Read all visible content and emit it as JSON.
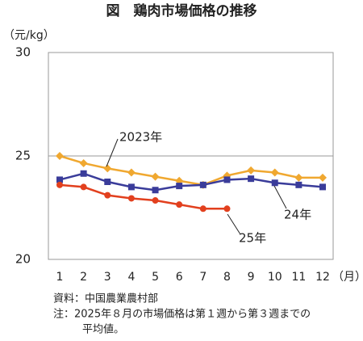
{
  "chart_data": {
    "type": "line",
    "title": "図　鶏肉市場価格の推移",
    "y_label": "（元/kg）",
    "x_label": "（月）",
    "categories": [
      "1",
      "2",
      "3",
      "4",
      "5",
      "6",
      "7",
      "8",
      "9",
      "10",
      "11",
      "12"
    ],
    "series": [
      {
        "name": "2023年",
        "color": "#f0a830",
        "marker": "diamond",
        "values": [
          25.0,
          24.65,
          24.4,
          24.2,
          24.0,
          23.8,
          23.6,
          24.05,
          24.3,
          24.2,
          23.95,
          23.95
        ]
      },
      {
        "name": "24年",
        "color": "#3a3c9a",
        "marker": "square",
        "values": [
          23.85,
          24.15,
          23.75,
          23.5,
          23.35,
          23.55,
          23.6,
          23.85,
          23.9,
          23.7,
          23.6,
          23.5
        ]
      },
      {
        "name": "25年",
        "color": "#e2401e",
        "marker": "circle",
        "values": [
          23.6,
          23.5,
          23.1,
          22.95,
          22.85,
          22.65,
          22.45,
          22.45,
          null,
          null,
          null,
          null
        ]
      }
    ],
    "ylim": [
      20,
      30
    ],
    "yticks": [
      20,
      25,
      30
    ],
    "grid": true,
    "notes": [
      "資料：中国農業農村部",
      "注：2025年８月の市場価格は第１週から第３週までの",
      "平均値。"
    ]
  }
}
